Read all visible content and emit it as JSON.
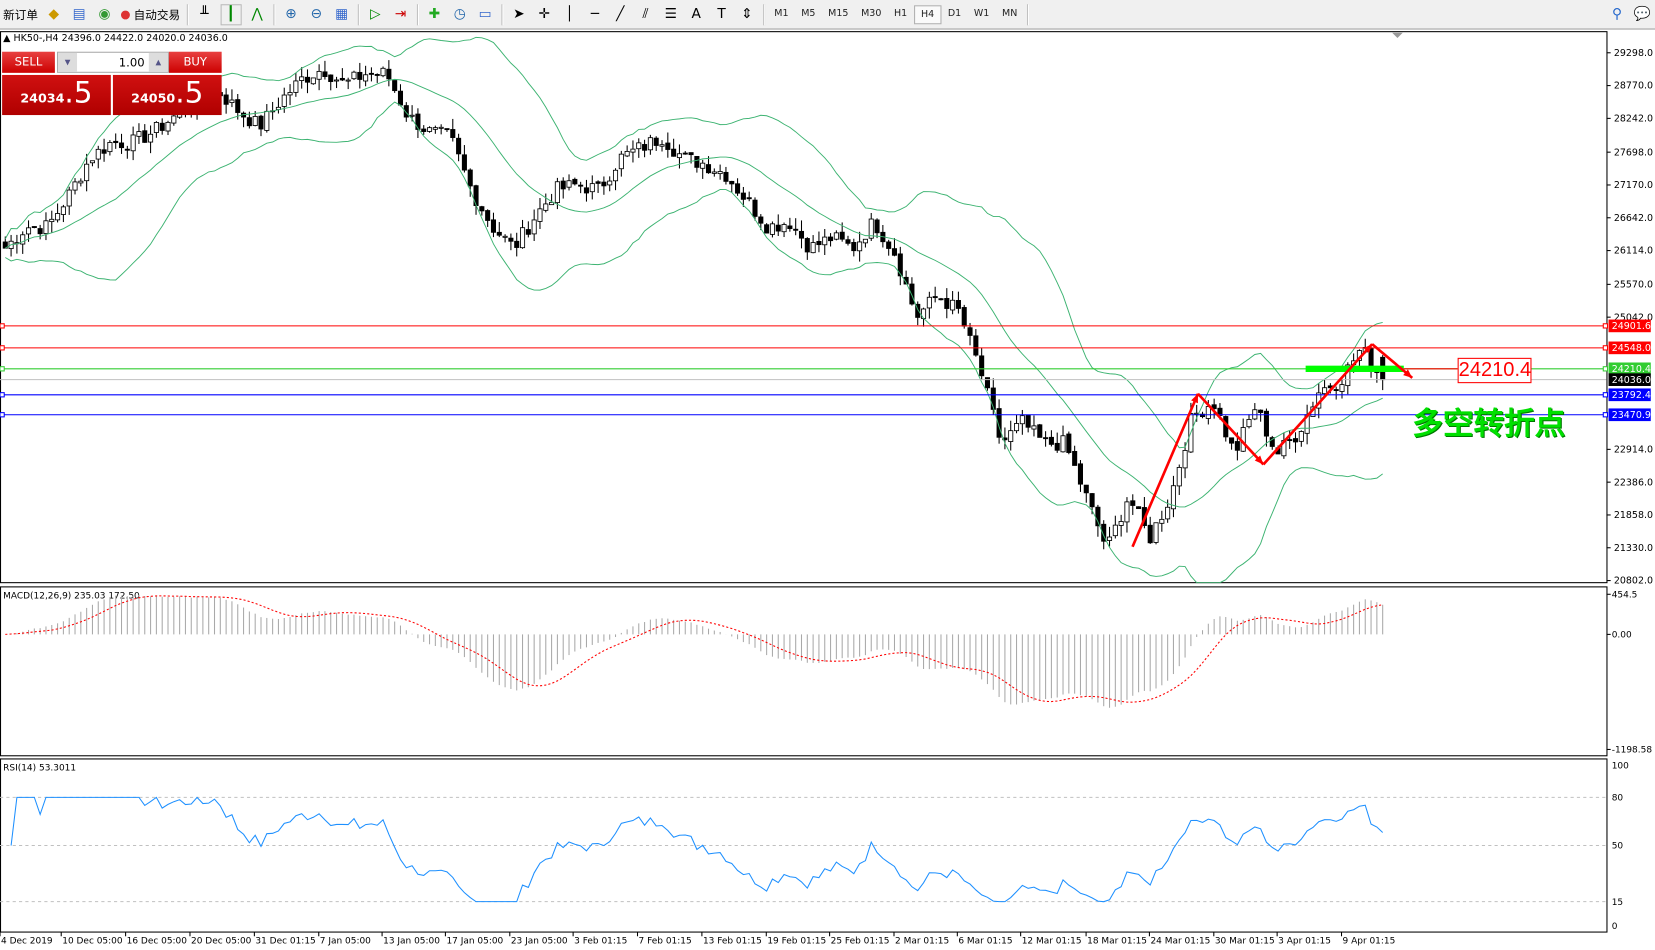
{
  "toolbar": {
    "new_order": "新订单",
    "auto_trading": "自动交易",
    "timeframes": [
      "M1",
      "M5",
      "M15",
      "M30",
      "H1",
      "H4",
      "D1",
      "W1",
      "MN"
    ],
    "active_timeframe": "H4"
  },
  "chart_header": {
    "symbol": "HK50-,H4",
    "ohlc": "24396.0 24422.0 24020.0 24036.0"
  },
  "trade_panel": {
    "sell_label": "SELL",
    "buy_label": "BUY",
    "volume": "1.00",
    "sell_price_main": "24034",
    "sell_price_pip": ".5",
    "buy_price_main": "24050",
    "buy_price_pip": ".5"
  },
  "price_axis": {
    "ticks": [
      29298.0,
      28770.0,
      28242.0,
      27698.0,
      27170.0,
      26642.0,
      26114.0,
      25570.0,
      25042.0,
      22914.0,
      22386.0,
      21858.0,
      21330.0,
      20802.0
    ],
    "range": [
      20802.0,
      29298.0
    ]
  },
  "levels": [
    {
      "value": "24901.6",
      "color": "#ff0000"
    },
    {
      "value": "24548.0",
      "color": "#ff0000"
    },
    {
      "value": "24210.4",
      "color": "#32cd32"
    },
    {
      "value": "24036.0",
      "color": "#000000",
      "line": "#c0c0c0"
    },
    {
      "value": "23792.4",
      "color": "#0000ff"
    },
    {
      "value": "23470.9",
      "color": "#0000ff"
    }
  ],
  "annotations": {
    "price_label": "24210.4",
    "text": "多空转折点",
    "arrow_color": "#ff0000",
    "bar_color": "#00ff00"
  },
  "closes": [
    26155,
    26495,
    26495,
    27005,
    27600,
    27855,
    27855,
    28025,
    28280,
    28450,
    28700,
    28365,
    28110,
    28535,
    28875,
    29043,
    28790,
    28960,
    28960,
    28280,
    28025,
    27940,
    27090,
    26495,
    26155,
    26665,
    27090,
    27175,
    27090,
    27600,
    27770,
    27940,
    27600,
    27515,
    27345,
    26920,
    26495,
    26580,
    26155,
    26325,
    26155,
    26580,
    26070,
    25050,
    25390,
    25135,
    24200,
    23010,
    23350,
    23010,
    23010,
    22160,
    21310,
    22160,
    21480,
    22160,
    23435,
    23690,
    22840,
    23605,
    22840,
    23180,
    23860,
    24030,
    24540,
    24036
  ],
  "macd": {
    "label": "MACD(12,26,9) 235.03 172.50",
    "ticks": [
      "454.5",
      "0.00",
      "-1198.58"
    ]
  },
  "rsi": {
    "label": "RSI(14) 53.3011",
    "ticks": [
      "100",
      "80",
      "50",
      "15",
      "0"
    ]
  },
  "time_axis": [
    "4 Dec 2019",
    "10 Dec 05:00",
    "16 Dec 05:00",
    "20 Dec 05:00",
    "31 Dec 01:15",
    "7 Jan 05:00",
    "13 Jan 05:00",
    "17 Jan 05:00",
    "23 Jan 05:00",
    "3 Feb 01:15",
    "7 Feb 01:15",
    "13 Feb 01:15",
    "19 Feb 01:15",
    "25 Feb 01:15",
    "2 Mar 01:15",
    "6 Mar 01:15",
    "12 Mar 01:15",
    "18 Mar 01:15",
    "24 Mar 01:15",
    "30 Mar 01:15",
    "3 Apr 01:15",
    "9 Apr 01:15"
  ]
}
